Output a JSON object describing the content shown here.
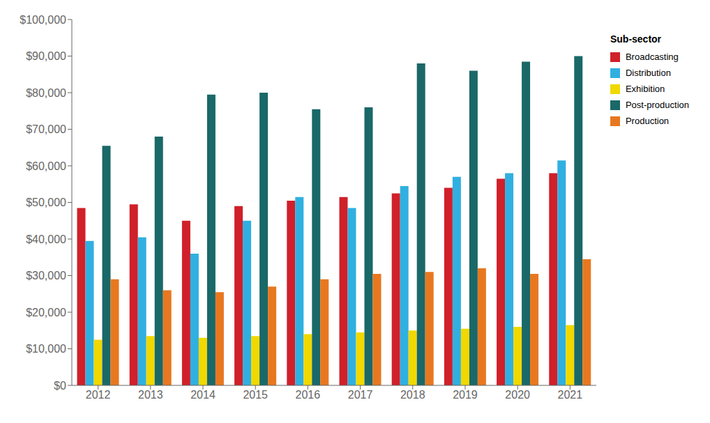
{
  "chart_data": {
    "type": "bar",
    "legend_title": "Sub-sector",
    "categories": [
      "2012",
      "2013",
      "2014",
      "2015",
      "2016",
      "2017",
      "2018",
      "2019",
      "2020",
      "2021"
    ],
    "series": [
      {
        "name": "Broadcasting",
        "color": "#d0202a",
        "values": [
          48500,
          49500,
          45000,
          49000,
          50500,
          51500,
          52500,
          54000,
          56500,
          58000
        ]
      },
      {
        "name": "Distribution",
        "color": "#30b0e0",
        "values": [
          39500,
          40500,
          36000,
          45000,
          51500,
          48500,
          54500,
          57000,
          58000,
          61500
        ]
      },
      {
        "name": "Exhibition",
        "color": "#f0d800",
        "values": [
          12500,
          13500,
          13000,
          13500,
          14000,
          14500,
          15000,
          15500,
          16000,
          16500
        ]
      },
      {
        "name": "Post-production",
        "color": "#1a6868",
        "values": [
          65500,
          68000,
          79500,
          80000,
          75500,
          76000,
          88000,
          86000,
          88500,
          90000
        ]
      },
      {
        "name": "Production",
        "color": "#e87820",
        "values": [
          29000,
          26000,
          25500,
          27000,
          29000,
          30500,
          31000,
          32000,
          30500,
          34500
        ]
      }
    ],
    "ylim": [
      0,
      100000
    ],
    "yticks": [
      {
        "value": 0,
        "label": "$0"
      },
      {
        "value": 10000,
        "label": "$10,000"
      },
      {
        "value": 20000,
        "label": "$20,000"
      },
      {
        "value": 30000,
        "label": "$30,000"
      },
      {
        "value": 40000,
        "label": "$40,000"
      },
      {
        "value": 50000,
        "label": "$50,000"
      },
      {
        "value": 60000,
        "label": "$60,000"
      },
      {
        "value": 70000,
        "label": "$70,000"
      },
      {
        "value": 80000,
        "label": "$80,000"
      },
      {
        "value": 90000,
        "label": "$90,000"
      },
      {
        "value": 100000,
        "label": "$100,000"
      }
    ],
    "grid": false,
    "legend": "right"
  }
}
